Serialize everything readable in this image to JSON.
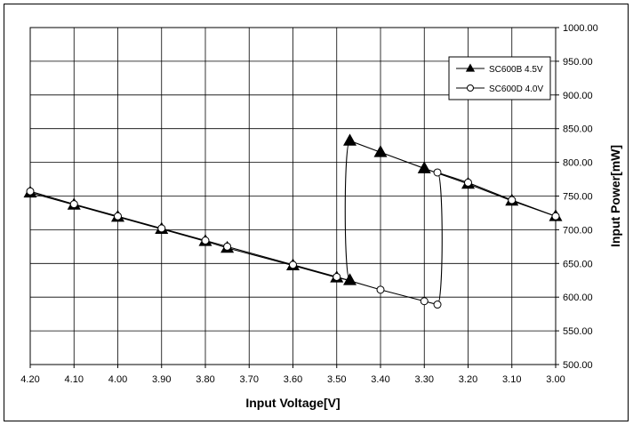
{
  "chart_data": {
    "type": "line",
    "title": "",
    "xlabel": "Input Voltage[V]",
    "ylabel": "Input Power[mW]",
    "xlim": [
      4.2,
      3.0
    ],
    "x_reversed": true,
    "ylim": [
      500,
      1000
    ],
    "ylabel_position": "right",
    "grid": true,
    "legend_position": "top-right",
    "x_ticks": [
      "4.20",
      "4.10",
      "4.00",
      "3.90",
      "3.80",
      "3.70",
      "3.60",
      "3.50",
      "3.40",
      "3.30",
      "3.20",
      "3.10",
      "3.00"
    ],
    "y_ticks": [
      "500.00",
      "550.00",
      "600.00",
      "650.00",
      "700.00",
      "750.00",
      "800.00",
      "850.00",
      "900.00",
      "950.00",
      "1000.00"
    ],
    "series": [
      {
        "name": "SC600B 4.5V",
        "marker": "filled-triangle",
        "color": "#000000",
        "points": [
          {
            "x": 4.2,
            "y": 755
          },
          {
            "x": 4.1,
            "y": 737
          },
          {
            "x": 4.0,
            "y": 719
          },
          {
            "x": 3.9,
            "y": 701
          },
          {
            "x": 3.8,
            "y": 683
          },
          {
            "x": 3.75,
            "y": 673
          },
          {
            "x": 3.6,
            "y": 647
          },
          {
            "x": 3.5,
            "y": 629
          },
          {
            "x": 3.47,
            "y": 625
          },
          {
            "x": 3.47,
            "y": 832
          },
          {
            "x": 3.4,
            "y": 815
          },
          {
            "x": 3.3,
            "y": 791
          },
          {
            "x": 3.2,
            "y": 768
          },
          {
            "x": 3.1,
            "y": 743
          },
          {
            "x": 3.0,
            "y": 720
          }
        ]
      },
      {
        "name": "SC600D 4.0V",
        "marker": "open-circle",
        "color": "#000000",
        "points": [
          {
            "x": 4.2,
            "y": 757
          },
          {
            "x": 4.1,
            "y": 738
          },
          {
            "x": 4.0,
            "y": 720
          },
          {
            "x": 3.9,
            "y": 702
          },
          {
            "x": 3.8,
            "y": 684
          },
          {
            "x": 3.75,
            "y": 675
          },
          {
            "x": 3.6,
            "y": 648
          },
          {
            "x": 3.5,
            "y": 630
          },
          {
            "x": 3.4,
            "y": 611
          },
          {
            "x": 3.3,
            "y": 594
          },
          {
            "x": 3.27,
            "y": 589
          },
          {
            "x": 3.27,
            "y": 785
          },
          {
            "x": 3.2,
            "y": 770
          },
          {
            "x": 3.1,
            "y": 744
          },
          {
            "x": 3.0,
            "y": 720
          }
        ]
      }
    ]
  }
}
